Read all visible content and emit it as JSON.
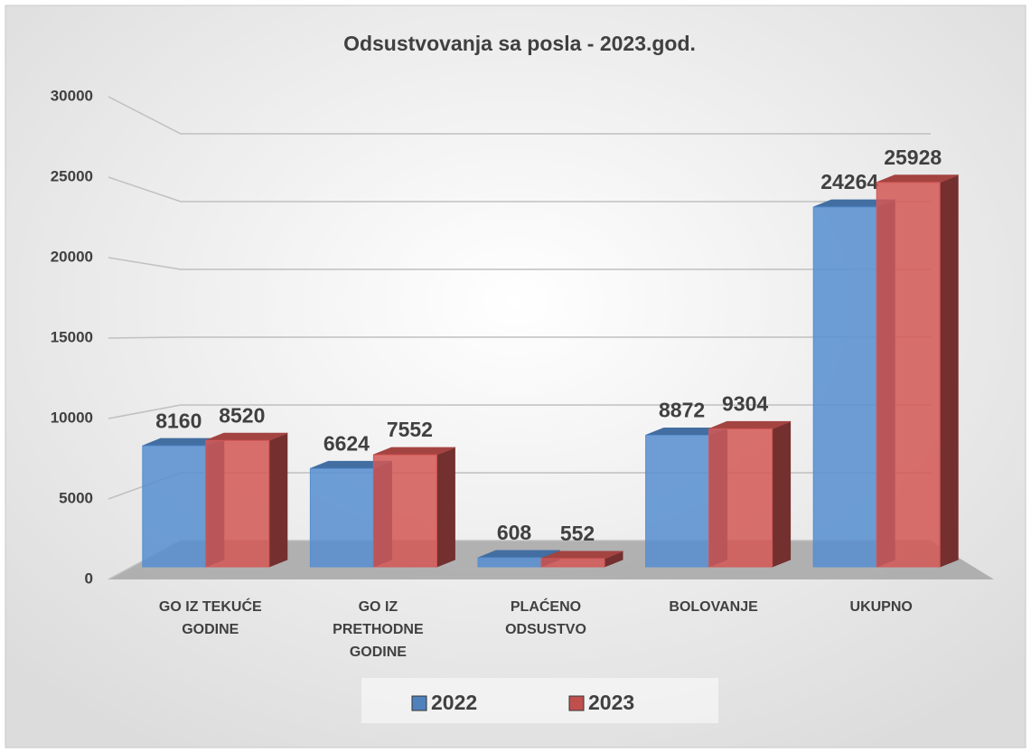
{
  "chart_data": {
    "type": "bar3d",
    "title": "Odsustvovanja sa posla - 2023.god.",
    "categories": [
      "GO IZ TEKUĆE GODINE",
      "GO IZ PRETHODNE GODINE",
      "PLAĆENO ODSUSTVO",
      "BOLOVANJE",
      "UKUPNO"
    ],
    "series": [
      {
        "name": "2022",
        "color": "#4f81bd",
        "values": [
          8160,
          6624,
          608,
          8872,
          24264
        ]
      },
      {
        "name": "2023",
        "color": "#c0504d",
        "values": [
          8520,
          7552,
          552,
          9304,
          25928
        ]
      }
    ],
    "ylim": [
      0,
      30000
    ],
    "yticks": [
      0,
      5000,
      10000,
      15000,
      20000,
      25000,
      30000
    ],
    "grid": true,
    "legend": "bottom"
  }
}
